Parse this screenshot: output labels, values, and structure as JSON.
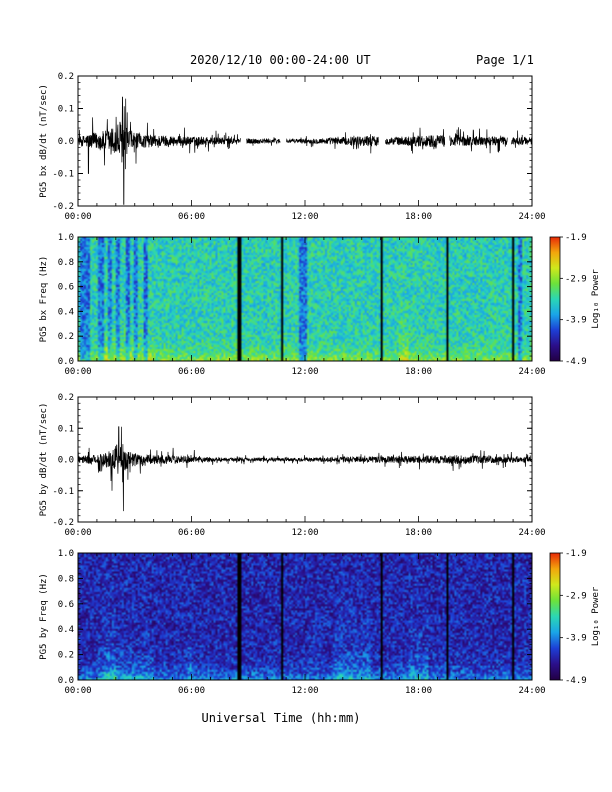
{
  "header": {
    "title": "2020/12/10  00:00-24:00 UT",
    "page": "Page 1/1"
  },
  "colors": {
    "trace": "#000000",
    "colormap": [
      "#220044",
      "#2b0f8a",
      "#1d3fd6",
      "#1aa5e8",
      "#2bd7b4",
      "#6de23a",
      "#cfe81c",
      "#f2a60c",
      "#e82a08"
    ]
  },
  "chart_data": [
    {
      "type": "line",
      "id": "bx-dbdt",
      "ylabel": "PG5 bx dB/dt (nT/sec)",
      "xlim": [
        0,
        24
      ],
      "ylim": [
        -0.2,
        0.2
      ],
      "yticks": [
        "0.2",
        "0.1",
        "0.0",
        "-0.1",
        "-0.2"
      ],
      "xticks": [
        "00:00",
        "06:00",
        "12:00",
        "18:00",
        "24:00"
      ],
      "gaps": [
        [
          8.6,
          8.9
        ],
        [
          10.7,
          11.0
        ],
        [
          15.9,
          16.25
        ],
        [
          19.4,
          19.65
        ],
        [
          22.7,
          22.9
        ]
      ],
      "envelope": [
        {
          "t": 0.0,
          "a": 0.02
        },
        {
          "t": 0.5,
          "a": 0.04
        },
        {
          "t": 1.0,
          "a": 0.05
        },
        {
          "t": 1.5,
          "a": 0.06
        },
        {
          "t": 2.0,
          "a": 0.09
        },
        {
          "t": 2.3,
          "a": 0.13
        },
        {
          "t": 2.6,
          "a": 0.07
        },
        {
          "t": 3.2,
          "a": 0.04
        },
        {
          "t": 4.0,
          "a": 0.035
        },
        {
          "t": 6.0,
          "a": 0.025
        },
        {
          "t": 9.0,
          "a": 0.015
        },
        {
          "t": 12.0,
          "a": 0.012
        },
        {
          "t": 15.5,
          "a": 0.03
        },
        {
          "t": 16.5,
          "a": 0.02
        },
        {
          "t": 18.5,
          "a": 0.035
        },
        {
          "t": 20.0,
          "a": 0.03
        },
        {
          "t": 24.0,
          "a": 0.02
        }
      ],
      "spikes": [
        {
          "t": 2.35,
          "v": 0.135
        },
        {
          "t": 2.42,
          "v": -0.195
        },
        {
          "t": 0.55,
          "v": -0.1
        },
        {
          "t": 1.4,
          "v": -0.075
        }
      ]
    },
    {
      "type": "heatmap",
      "id": "bx-spec",
      "ylabel": "PG5 bx Freq (Hz)",
      "xlim": [
        0,
        24
      ],
      "ylim": [
        0.0,
        1.0
      ],
      "yticks": [
        "1.0",
        "0.8",
        "0.6",
        "0.4",
        "0.2",
        "0.0"
      ],
      "xticks": [
        "00:00",
        "06:00",
        "12:00",
        "18:00",
        "24:00"
      ],
      "colorbar": {
        "label": "Log₁₀ Power",
        "ticks": [
          "-1.9",
          "-2.9",
          "-3.9",
          "-4.9"
        ],
        "range": [
          -4.9,
          -1.9
        ]
      },
      "base_power": -3.45,
      "gaps": [
        [
          8.45,
          8.65
        ],
        [
          10.7,
          10.85
        ],
        [
          15.95,
          16.1
        ],
        [
          19.45,
          19.6
        ],
        [
          22.9,
          23.1
        ]
      ],
      "dark_bands": [
        [
          0.1,
          0.6
        ],
        [
          1.1,
          1.4
        ],
        [
          1.6,
          1.75
        ],
        [
          2.0,
          2.2
        ],
        [
          2.5,
          2.7
        ],
        [
          3.0,
          3.2
        ],
        [
          3.5,
          3.7
        ],
        [
          11.7,
          12.1
        ],
        [
          23.3,
          23.5
        ]
      ],
      "bright_bands": [
        [
          1.5,
          1.8
        ],
        [
          17.0,
          17.5
        ]
      ]
    },
    {
      "type": "line",
      "id": "by-dbdt",
      "ylabel": "PG5 by dB/dt (nT/sec)",
      "xlim": [
        0,
        24
      ],
      "ylim": [
        -0.2,
        0.2
      ],
      "yticks": [
        "0.2",
        "0.1",
        "0.0",
        "-0.1",
        "-0.2"
      ],
      "xticks": [
        "00:00",
        "06:00",
        "12:00",
        "18:00",
        "24:00"
      ],
      "gaps": [],
      "envelope": [
        {
          "t": 0.0,
          "a": 0.02
        },
        {
          "t": 1.0,
          "a": 0.03
        },
        {
          "t": 1.6,
          "a": 0.05
        },
        {
          "t": 2.1,
          "a": 0.1
        },
        {
          "t": 2.5,
          "a": 0.06
        },
        {
          "t": 3.2,
          "a": 0.03
        },
        {
          "t": 5.0,
          "a": 0.025
        },
        {
          "t": 8.0,
          "a": 0.01
        },
        {
          "t": 12.0,
          "a": 0.01
        },
        {
          "t": 15.8,
          "a": 0.02
        },
        {
          "t": 17.0,
          "a": 0.02
        },
        {
          "t": 20.0,
          "a": 0.025
        },
        {
          "t": 24.0,
          "a": 0.015
        }
      ],
      "spikes": [
        {
          "t": 2.15,
          "v": 0.105
        },
        {
          "t": 2.4,
          "v": -0.165
        },
        {
          "t": 1.8,
          "v": -0.1
        }
      ]
    },
    {
      "type": "heatmap",
      "id": "by-spec",
      "ylabel": "PG5 by Freq (Hz)",
      "xlim": [
        0,
        24
      ],
      "ylim": [
        0.0,
        1.0
      ],
      "yticks": [
        "1.0",
        "0.8",
        "0.6",
        "0.4",
        "0.2",
        "0.0"
      ],
      "xticks": [
        "00:00",
        "06:00",
        "12:00",
        "18:00",
        "24:00"
      ],
      "colorbar": {
        "label": "Log₁₀ Power",
        "ticks": [
          "-1.9",
          "-2.9",
          "-3.9",
          "-4.9"
        ],
        "range": [
          -4.9,
          -1.9
        ]
      },
      "base_power": -4.35,
      "gaps": [
        [
          8.45,
          8.65
        ],
        [
          10.7,
          10.85
        ],
        [
          15.95,
          16.1
        ],
        [
          19.45,
          19.6
        ],
        [
          22.9,
          23.1
        ]
      ],
      "dark_bands": [],
      "bright_bands": [
        [
          1.4,
          2.0
        ],
        [
          5.8,
          5.95
        ],
        [
          13.5,
          15.5
        ],
        [
          17.5,
          18.5
        ]
      ]
    }
  ],
  "xlabel": "Universal Time (hh:mm)"
}
